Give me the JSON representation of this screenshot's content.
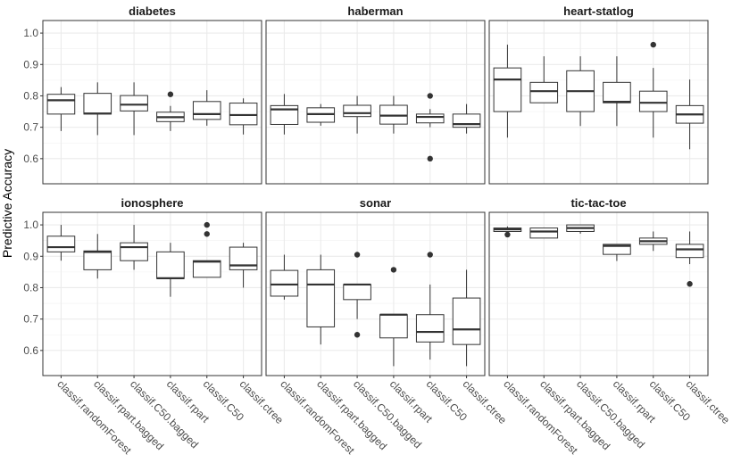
{
  "chart_data": {
    "type": "boxplot",
    "ylabel": "Predictive Accuracy",
    "xlabel": "",
    "ylim": [
      0.52,
      1.04
    ],
    "yticks": [
      0.6,
      0.7,
      0.8,
      0.9,
      1.0
    ],
    "ytick_labels": [
      "0.6",
      "0.7",
      "0.8",
      "0.9",
      "1.0"
    ],
    "grid": true,
    "legend": "none",
    "categories": [
      "classif.randomForest",
      "classif.rpart.bagged",
      "classif.C50.bagged",
      "classif.rpart",
      "classif.C50",
      "classif.ctree"
    ],
    "facets": [
      {
        "title": "diabetes",
        "boxes": [
          {
            "min": 0.688,
            "q1": 0.742,
            "median": 0.786,
            "q3": 0.805,
            "max": 0.828,
            "outliers": []
          },
          {
            "min": 0.675,
            "q1": 0.742,
            "median": 0.744,
            "q3": 0.808,
            "max": 0.843,
            "outliers": []
          },
          {
            "min": 0.675,
            "q1": 0.752,
            "median": 0.772,
            "q3": 0.801,
            "max": 0.843,
            "outliers": []
          },
          {
            "min": 0.688,
            "q1": 0.718,
            "median": 0.732,
            "q3": 0.748,
            "max": 0.768,
            "outliers": [
              0.805
            ]
          },
          {
            "min": 0.705,
            "q1": 0.725,
            "median": 0.742,
            "q3": 0.782,
            "max": 0.818,
            "outliers": []
          },
          {
            "min": 0.677,
            "q1": 0.708,
            "median": 0.739,
            "q3": 0.777,
            "max": 0.792,
            "outliers": []
          }
        ]
      },
      {
        "title": "haberman",
        "boxes": [
          {
            "min": 0.677,
            "q1": 0.709,
            "median": 0.757,
            "q3": 0.769,
            "max": 0.806,
            "outliers": []
          },
          {
            "min": 0.705,
            "q1": 0.716,
            "median": 0.742,
            "q3": 0.762,
            "max": 0.774,
            "outliers": []
          },
          {
            "min": 0.68,
            "q1": 0.734,
            "median": 0.745,
            "q3": 0.77,
            "max": 0.8,
            "outliers": []
          },
          {
            "min": 0.68,
            "q1": 0.71,
            "median": 0.737,
            "q3": 0.77,
            "max": 0.8,
            "outliers": []
          },
          {
            "min": 0.7,
            "q1": 0.714,
            "median": 0.733,
            "q3": 0.742,
            "max": 0.758,
            "outliers": [
              0.8,
              0.6
            ]
          },
          {
            "min": 0.68,
            "q1": 0.7,
            "median": 0.71,
            "q3": 0.742,
            "max": 0.774,
            "outliers": []
          }
        ]
      },
      {
        "title": "heart-statlog",
        "boxes": [
          {
            "min": 0.667,
            "q1": 0.75,
            "median": 0.852,
            "q3": 0.889,
            "max": 0.963,
            "outliers": []
          },
          {
            "min": 0.778,
            "q1": 0.778,
            "median": 0.815,
            "q3": 0.843,
            "max": 0.926,
            "outliers": []
          },
          {
            "min": 0.704,
            "q1": 0.75,
            "median": 0.815,
            "q3": 0.88,
            "max": 0.926,
            "outliers": []
          },
          {
            "min": 0.704,
            "q1": 0.778,
            "median": 0.781,
            "q3": 0.843,
            "max": 0.926,
            "outliers": []
          },
          {
            "min": 0.667,
            "q1": 0.75,
            "median": 0.778,
            "q3": 0.815,
            "max": 0.889,
            "outliers": [
              0.963
            ]
          },
          {
            "min": 0.63,
            "q1": 0.713,
            "median": 0.741,
            "q3": 0.769,
            "max": 0.852,
            "outliers": []
          }
        ]
      },
      {
        "title": "ionosphere",
        "boxes": [
          {
            "min": 0.886,
            "q1": 0.914,
            "median": 0.929,
            "q3": 0.964,
            "max": 1.0,
            "outliers": []
          },
          {
            "min": 0.829,
            "q1": 0.857,
            "median": 0.914,
            "q3": 0.917,
            "max": 0.971,
            "outliers": []
          },
          {
            "min": 0.857,
            "q1": 0.886,
            "median": 0.929,
            "q3": 0.943,
            "max": 1.0,
            "outliers": []
          },
          {
            "min": 0.771,
            "q1": 0.829,
            "median": 0.83,
            "q3": 0.914,
            "max": 0.943,
            "outliers": []
          },
          {
            "min": 0.833,
            "q1": 0.833,
            "median": 0.883,
            "q3": 0.886,
            "max": 0.886,
            "outliers": [
              1.0,
              0.971
            ]
          },
          {
            "min": 0.8,
            "q1": 0.857,
            "median": 0.871,
            "q3": 0.929,
            "max": 0.943,
            "outliers": []
          }
        ]
      },
      {
        "title": "sonar",
        "boxes": [
          {
            "min": 0.762,
            "q1": 0.773,
            "median": 0.81,
            "q3": 0.855,
            "max": 0.905,
            "outliers": []
          },
          {
            "min": 0.619,
            "q1": 0.675,
            "median": 0.81,
            "q3": 0.857,
            "max": 0.905,
            "outliers": []
          },
          {
            "min": 0.7,
            "q1": 0.762,
            "median": 0.81,
            "q3": 0.81,
            "max": 0.81,
            "outliers": [
              0.905,
              0.65
            ]
          },
          {
            "min": 0.55,
            "q1": 0.64,
            "median": 0.714,
            "q3": 0.714,
            "max": 0.714,
            "outliers": [
              0.857
            ]
          },
          {
            "min": 0.571,
            "q1": 0.627,
            "median": 0.659,
            "q3": 0.714,
            "max": 0.81,
            "outliers": [
              0.905
            ]
          },
          {
            "min": 0.55,
            "q1": 0.619,
            "median": 0.667,
            "q3": 0.767,
            "max": 0.857,
            "outliers": []
          }
        ]
      },
      {
        "title": "tic-tac-toe",
        "boxes": [
          {
            "min": 0.979,
            "q1": 0.979,
            "median": 0.986,
            "q3": 0.99,
            "max": 0.995,
            "outliers": [
              0.969
            ]
          },
          {
            "min": 0.958,
            "q1": 0.958,
            "median": 0.979,
            "q3": 0.99,
            "max": 0.99,
            "outliers": []
          },
          {
            "min": 0.972,
            "q1": 0.979,
            "median": 0.99,
            "q3": 1.0,
            "max": 1.0,
            "outliers": []
          },
          {
            "min": 0.885,
            "q1": 0.906,
            "median": 0.933,
            "q3": 0.938,
            "max": 0.938,
            "outliers": []
          },
          {
            "min": 0.917,
            "q1": 0.938,
            "median": 0.948,
            "q3": 0.958,
            "max": 0.979,
            "outliers": []
          },
          {
            "min": 0.875,
            "q1": 0.896,
            "median": 0.922,
            "q3": 0.938,
            "max": 0.979,
            "outliers": [
              0.812
            ]
          }
        ]
      }
    ]
  }
}
